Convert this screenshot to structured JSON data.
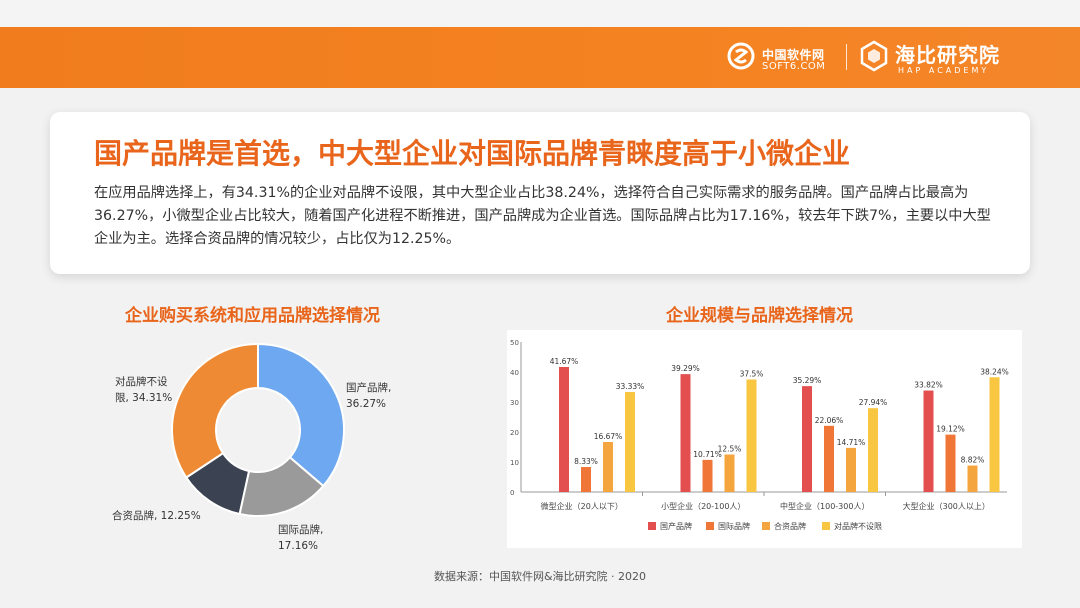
{
  "header": {
    "soft6_name": "中国软件网",
    "soft6_domain": "SOFT6.COM",
    "hap_name": "海比研究院",
    "hap_en": "HAP ACADEMY"
  },
  "headline": "国产品牌是首选，中大型企业对国际品牌青睐度高于小微企业",
  "summary": "在应用品牌选择上，有34.31%的企业对品牌不设限，其中大型企业占比38.24%，选择符合自己实际需求的服务品牌。国产品牌占比最高为36.27%，小微型企业占比较大，随着国产化进程不断推进，国产品牌成为企业首选。国际品牌占比为17.16%，较去年下跌7%，主要以中大型企业为主。选择合资品牌的情况较少，占比仅为12.25%。",
  "left_title": "企业购买系统和应用品牌选择情况",
  "right_title": "企业规模与品牌选择情况",
  "pie_labels": {
    "brand_free": [
      "对品牌不设",
      "限, 34.31%"
    ],
    "domestic": [
      "国产品牌,",
      "36.27%"
    ],
    "international": [
      "国际品牌,",
      "17.16%"
    ],
    "joint": [
      "合资品牌, 12.25%"
    ]
  },
  "source": "数据来源：中国软件网&海比研究院 · 2020",
  "colors": {
    "orange": "#f58220",
    "domestic": "#6ea8f0",
    "international": "#9a9a9a",
    "joint": "#3b4251",
    "brand_free": "#ef8a34",
    "bar_domestic": "#e34f4f",
    "bar_international": "#ef7636",
    "bar_joint": "#f5a53d",
    "bar_brand_free": "#f8c640"
  },
  "chart_data": [
    {
      "type": "pie",
      "title": "企业购买系统和应用品牌选择情况",
      "donut": true,
      "slices": [
        {
          "label": "国产品牌",
          "value": 36.27
        },
        {
          "label": "国际品牌",
          "value": 17.16
        },
        {
          "label": "合资品牌",
          "value": 12.25
        },
        {
          "label": "对品牌不设限",
          "value": 34.31
        }
      ]
    },
    {
      "type": "bar",
      "title": "企业规模与品牌选择情况",
      "categories": [
        "微型企业（20人以下）",
        "小型企业（20-100人）",
        "中型企业（100-300人）",
        "大型企业（300人以上）"
      ],
      "series": [
        {
          "name": "国产品牌",
          "values": [
            41.67,
            39.29,
            35.29,
            33.82
          ],
          "labels": [
            "41.67%",
            "39.29%",
            "35.29%",
            "33.82%"
          ]
        },
        {
          "name": "国际品牌",
          "values": [
            8.33,
            10.71,
            22.06,
            19.12
          ],
          "labels": [
            "8.33%",
            "10.71%",
            "22.06%",
            "19.12%"
          ]
        },
        {
          "name": "合资品牌",
          "values": [
            16.67,
            12.5,
            14.71,
            8.82
          ],
          "labels": [
            "16.67%",
            "12.5%",
            "14.71%",
            "8.82%"
          ]
        },
        {
          "name": "对品牌不设限",
          "values": [
            33.33,
            37.5,
            27.94,
            38.24
          ],
          "labels": [
            "33.33%",
            "37.5%",
            "27.94%",
            "38.24%"
          ]
        }
      ],
      "yticks": [
        "0",
        "10",
        "20",
        "30",
        "40",
        "50"
      ],
      "ylim": [
        0,
        50
      ],
      "legend": "bottom",
      "grid": false
    }
  ]
}
